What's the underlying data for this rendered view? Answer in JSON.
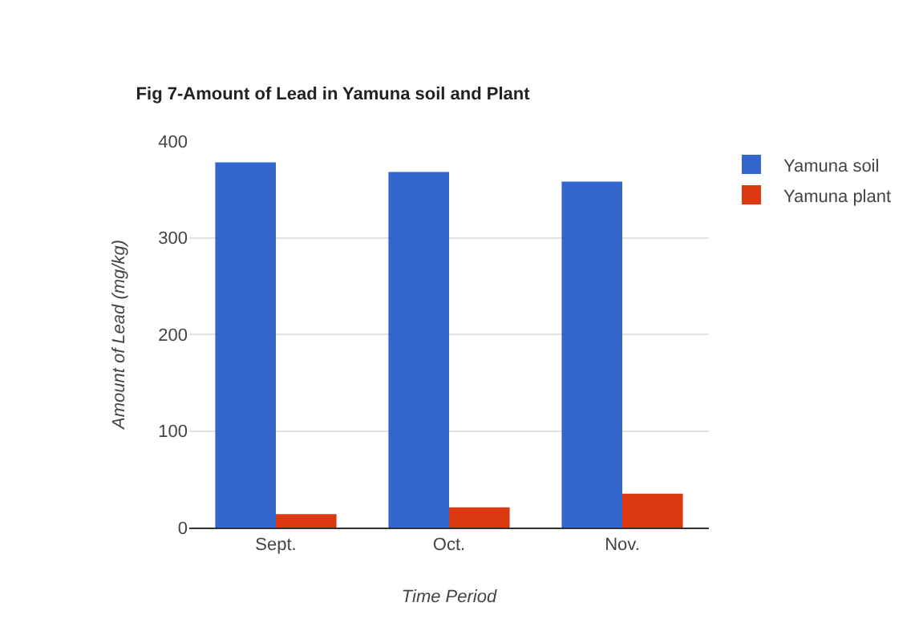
{
  "chart_data": {
    "type": "bar",
    "title": "Fig 7-Amount of Lead in Yamuna soil and Plant",
    "xlabel": "Time Period",
    "ylabel": "Amount of Lead (mg/kg)",
    "categories": [
      "Sept.",
      "Oct.",
      "Nov."
    ],
    "series": [
      {
        "name": "Yamuna soil",
        "color": "#3366cc",
        "values": [
          378,
          368,
          358
        ]
      },
      {
        "name": "Yamuna plant",
        "color": "#dc3912",
        "values": [
          14,
          21,
          35
        ]
      }
    ],
    "ylim": [
      0,
      400
    ],
    "yticks": [
      0,
      100,
      200,
      300,
      400
    ],
    "grid": "y",
    "legend": "top right"
  }
}
